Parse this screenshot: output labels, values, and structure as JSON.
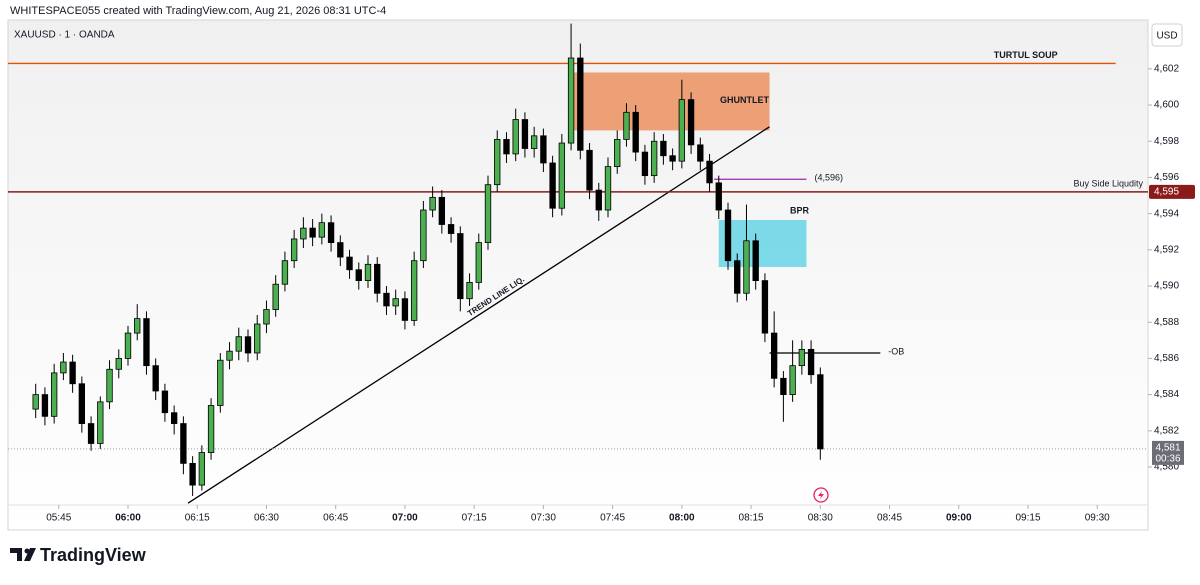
{
  "header": {
    "caption": "WHITESPACE055 created with TradingView.com, Aug 21, 2026 08:31 UTC-4",
    "brand": "TradingView"
  },
  "chart_data": {
    "type": "candlestick",
    "symbol": "XAUUSD · 1 · OANDA",
    "currency": "USD",
    "up_color": "#4caf50",
    "down_color": "#000000",
    "x": [
      "05:40",
      "05:42",
      "05:44",
      "05:46",
      "05:48",
      "05:50",
      "05:52",
      "05:54",
      "05:56",
      "05:58",
      "06:00",
      "06:02",
      "06:04",
      "06:06",
      "06:08",
      "06:10",
      "06:12",
      "06:14",
      "06:16",
      "06:18",
      "06:20",
      "06:22",
      "06:24",
      "06:26",
      "06:28",
      "06:30",
      "06:32",
      "06:34",
      "06:36",
      "06:38",
      "06:40",
      "06:42",
      "06:44",
      "06:46",
      "06:48",
      "06:50",
      "06:52",
      "06:54",
      "06:56",
      "06:58",
      "07:00",
      "07:02",
      "07:04",
      "07:06",
      "07:08",
      "07:10",
      "07:12",
      "07:14",
      "07:16",
      "07:18",
      "07:20",
      "07:22",
      "07:24",
      "07:26",
      "07:28",
      "07:30",
      "07:32",
      "07:34",
      "07:36",
      "07:38",
      "07:40",
      "07:42",
      "07:44",
      "07:46",
      "07:48",
      "07:50",
      "07:52",
      "07:54",
      "07:56",
      "07:58",
      "08:00",
      "08:02",
      "08:04",
      "08:06",
      "08:08",
      "08:10",
      "08:12",
      "08:14",
      "08:16",
      "08:18",
      "08:20",
      "08:22",
      "08:24",
      "08:26",
      "08:28",
      "08:30"
    ],
    "open": [
      4583.2,
      4584.0,
      4582.8,
      4585.2,
      4585.8,
      4584.6,
      4582.4,
      4581.3,
      4583.6,
      4585.4,
      4586.0,
      4587.4,
      4588.2,
      4585.6,
      4584.2,
      4583.0,
      4582.4,
      4580.2,
      4579.0,
      4580.8,
      4583.4,
      4585.9,
      4586.4,
      4587.2,
      4586.3,
      4587.9,
      4588.7,
      4590.1,
      4591.4,
      4592.6,
      4593.2,
      4592.7,
      4593.5,
      4592.4,
      4591.6,
      4590.9,
      4590.3,
      4591.2,
      4589.6,
      4588.9,
      4589.3,
      4588.1,
      4591.4,
      4594.2,
      4594.9,
      4593.4,
      4592.9,
      4589.3,
      4590.2,
      4592.4,
      4595.6,
      4598.1,
      4597.3,
      4599.2,
      4597.6,
      4598.3,
      4596.8,
      4594.3,
      4597.9,
      4602.6,
      4597.5,
      4595.3,
      4594.2,
      4596.6,
      4598.1,
      4599.6,
      4597.4,
      4596.1,
      4598.0,
      4597.2,
      4596.9,
      4600.3,
      4597.8,
      4596.9,
      4595.7,
      4594.2,
      4591.4,
      4589.6,
      4592.5,
      4590.3,
      4587.4,
      4584.9,
      4584.0,
      4585.6,
      4586.5,
      4585.1
    ],
    "high": [
      4584.6,
      4584.4,
      4585.7,
      4586.3,
      4586.2,
      4585.0,
      4582.8,
      4583.9,
      4585.9,
      4586.5,
      4587.8,
      4589.0,
      4588.6,
      4586.0,
      4584.6,
      4583.4,
      4582.8,
      4580.6,
      4581.2,
      4583.8,
      4586.3,
      4586.9,
      4587.7,
      4587.6,
      4588.4,
      4589.2,
      4590.6,
      4591.9,
      4593.1,
      4593.8,
      4593.7,
      4594.0,
      4593.9,
      4592.8,
      4592.0,
      4591.3,
      4591.7,
      4591.6,
      4590.0,
      4589.8,
      4589.7,
      4591.9,
      4594.7,
      4595.5,
      4595.3,
      4593.8,
      4593.3,
      4590.7,
      4592.9,
      4596.1,
      4598.6,
      4598.5,
      4599.8,
      4599.6,
      4598.8,
      4598.7,
      4597.2,
      4598.4,
      4604.5,
      4603.4,
      4597.9,
      4595.7,
      4597.1,
      4598.6,
      4600.1,
      4600.0,
      4597.8,
      4598.5,
      4598.4,
      4597.6,
      4601.4,
      4600.7,
      4598.2,
      4597.3,
      4596.1,
      4594.6,
      4591.8,
      4594.5,
      4592.9,
      4590.7,
      4588.6,
      4585.3,
      4587.0,
      4587.0,
      4587.0,
      4585.5
    ],
    "low": [
      4582.7,
      4582.3,
      4582.4,
      4584.8,
      4584.1,
      4581.9,
      4580.9,
      4581.0,
      4583.2,
      4584.9,
      4585.6,
      4587.0,
      4585.1,
      4583.7,
      4582.5,
      4581.8,
      4579.6,
      4578.4,
      4578.7,
      4580.4,
      4583.0,
      4585.4,
      4585.9,
      4585.8,
      4585.9,
      4587.4,
      4588.3,
      4589.7,
      4591.0,
      4592.1,
      4592.2,
      4592.3,
      4591.9,
      4591.1,
      4590.4,
      4589.8,
      4589.9,
      4589.1,
      4588.4,
      4588.4,
      4587.6,
      4587.8,
      4591.0,
      4593.8,
      4592.9,
      4592.4,
      4588.6,
      4588.9,
      4589.8,
      4592.0,
      4595.2,
      4596.8,
      4596.9,
      4597.1,
      4597.1,
      4596.3,
      4593.8,
      4593.9,
      4597.5,
      4597.0,
      4594.8,
      4593.6,
      4593.8,
      4596.2,
      4597.7,
      4596.9,
      4595.6,
      4595.7,
      4596.7,
      4596.4,
      4596.5,
      4597.3,
      4596.4,
      4595.2,
      4593.7,
      4590.9,
      4589.1,
      4589.2,
      4589.8,
      4586.9,
      4584.4,
      4582.5,
      4583.6,
      4585.1,
      4584.6,
      4580.4
    ],
    "close": [
      4584.0,
      4582.8,
      4585.2,
      4585.8,
      4584.6,
      4582.4,
      4581.3,
      4583.6,
      4585.4,
      4586.0,
      4587.4,
      4588.2,
      4585.6,
      4584.2,
      4583.0,
      4582.4,
      4580.2,
      4579.0,
      4580.8,
      4583.4,
      4585.9,
      4586.4,
      4587.2,
      4586.3,
      4587.9,
      4588.7,
      4590.1,
      4591.4,
      4592.6,
      4593.2,
      4592.7,
      4593.5,
      4592.4,
      4591.6,
      4590.9,
      4590.3,
      4591.2,
      4589.6,
      4588.9,
      4589.3,
      4588.1,
      4591.4,
      4594.2,
      4594.9,
      4593.4,
      4592.9,
      4589.3,
      4590.2,
      4592.4,
      4595.6,
      4598.1,
      4597.3,
      4599.2,
      4597.6,
      4598.3,
      4596.8,
      4594.3,
      4597.9,
      4602.6,
      4597.5,
      4595.3,
      4594.2,
      4596.6,
      4598.1,
      4599.6,
      4597.4,
      4596.1,
      4598.0,
      4597.2,
      4596.9,
      4600.3,
      4597.8,
      4596.9,
      4595.7,
      4594.2,
      4591.4,
      4589.6,
      4592.5,
      4590.3,
      4587.4,
      4584.9,
      4584.0,
      4585.6,
      4586.5,
      4585.1,
      4581.0
    ],
    "xlim": [
      "05:34",
      "09:41"
    ],
    "xticks": [
      "05:45",
      "06:00",
      "06:15",
      "06:30",
      "06:45",
      "07:00",
      "07:15",
      "07:30",
      "07:45",
      "08:00",
      "08:15",
      "08:30",
      "08:45",
      "09:00",
      "09:15",
      "09:30"
    ],
    "ylim": [
      4577.9,
      4604.7
    ],
    "yticks": [
      {
        "value": 4580,
        "label": "4,580"
      },
      {
        "value": 4582,
        "label": "4,582"
      },
      {
        "value": 4584,
        "label": "4,584"
      },
      {
        "value": 4586,
        "label": "4,586"
      },
      {
        "value": 4588,
        "label": "4,588"
      },
      {
        "value": 4590,
        "label": "4,590"
      },
      {
        "value": 4592,
        "label": "4,592"
      },
      {
        "value": 4594,
        "label": "4,594"
      },
      {
        "value": 4596,
        "label": "4,596"
      },
      {
        "value": 4598,
        "label": "4,598"
      },
      {
        "value": 4600,
        "label": "4,600"
      },
      {
        "value": 4602,
        "label": "4,602"
      }
    ],
    "last_price": {
      "value": 4581,
      "label": "4,581",
      "countdown": "00:36"
    },
    "drawings": [
      {
        "type": "hline",
        "label": "TURTUL SOUP",
        "price": 4602.3,
        "start": "05:34",
        "end": "09:34",
        "color": "#e65100"
      },
      {
        "type": "rect",
        "label": "GHUNTLET",
        "top": 4601.8,
        "bottom": 4598.6,
        "start": "07:36",
        "end": "08:19",
        "color": "#ec9668"
      },
      {
        "type": "trend",
        "label": "TREND LINE LIQ.",
        "start": "06:13",
        "end": "08:19",
        "from": 4578.0,
        "to": 4598.8,
        "color": "#000000"
      },
      {
        "type": "tagline",
        "label": "Buy Side Liqudity",
        "price": {
          "value": 4595.2,
          "label": "4,595"
        },
        "start": "05:34",
        "end": "09:41",
        "color": "#8b1a1a"
      },
      {
        "type": "hline",
        "label": "(4,596)",
        "price": 4595.9,
        "start": "08:07",
        "end": "08:27",
        "color": "#9c27b0"
      },
      {
        "type": "rect",
        "label": "BPR",
        "top": 4593.65,
        "bottom": 4591.05,
        "start": "08:08",
        "end": "08:27",
        "color": "#6fd6e6"
      },
      {
        "type": "hline",
        "label": "-OB",
        "price": 4586.3,
        "start": "08:19",
        "end": "08:43",
        "color": "#000000"
      }
    ]
  }
}
